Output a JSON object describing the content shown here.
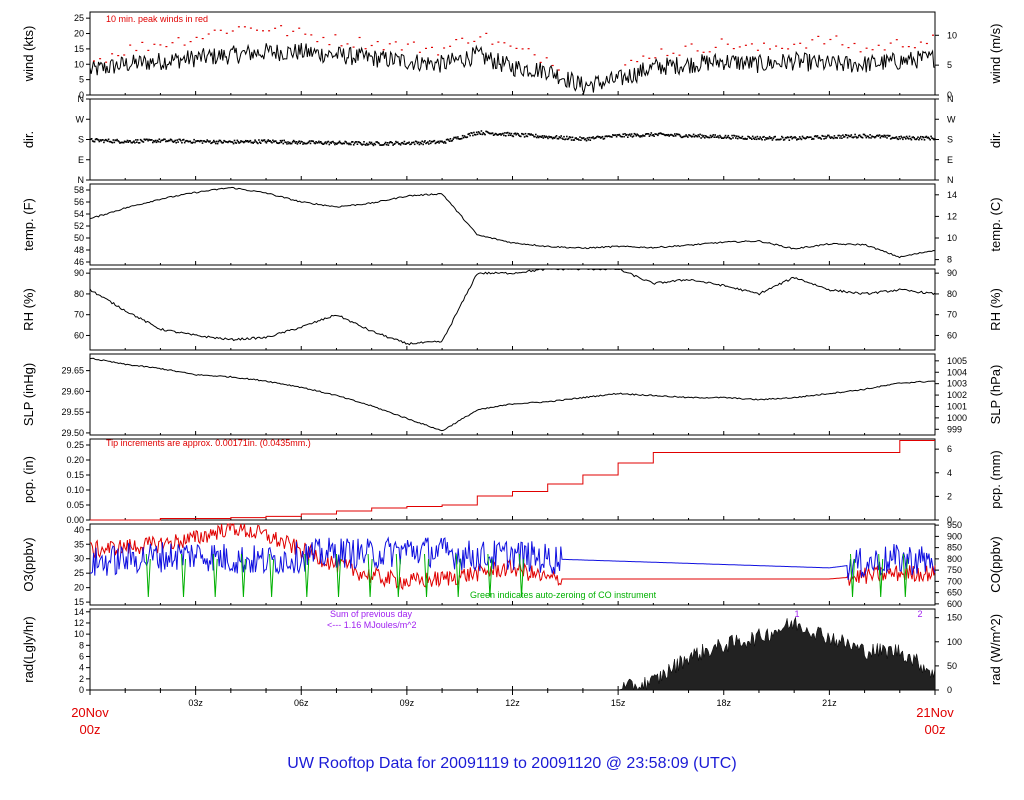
{
  "title": "UW Rooftop Data for 20091119  to  20091120 @ 23:58:09  (UTC)",
  "colors": {
    "red": "#e00000",
    "blue": "#1010e0",
    "green": "#00b000",
    "purple": "#a020f0",
    "black": "#000000"
  },
  "x_axis": {
    "ticks": [
      "03z",
      "06z",
      "09z",
      "12z",
      "15z",
      "18z",
      "21z"
    ],
    "start_label": "20Nov",
    "start_sub": "00z",
    "end_label": "21Nov",
    "end_sub": "00z"
  },
  "panels": [
    {
      "id": "wind",
      "ylabel_left": "wind (kts)",
      "ylabel_right": "wind (m/s)",
      "left_ticks": [
        "0",
        "5",
        "10",
        "15",
        "20",
        "25"
      ],
      "right_ticks": [
        "0",
        "5",
        "10"
      ],
      "note": "10 min. peak winds in red"
    },
    {
      "id": "dir",
      "ylabel_left": "dir.",
      "ylabel_right": "dir.",
      "left_ticks": [
        "N",
        "E",
        "S",
        "W",
        "N"
      ],
      "right_ticks": [
        "N",
        "E",
        "S",
        "W",
        "N"
      ]
    },
    {
      "id": "temp",
      "ylabel_left": "temp. (F)",
      "ylabel_right": "temp. (C)",
      "left_ticks": [
        "46",
        "48",
        "50",
        "52",
        "54",
        "56",
        "58"
      ],
      "right_ticks": [
        "8",
        "10",
        "12",
        "14"
      ]
    },
    {
      "id": "rh",
      "ylabel_left": "RH (%)",
      "ylabel_right": "RH (%)",
      "left_ticks": [
        "60",
        "70",
        "80",
        "90"
      ],
      "right_ticks": [
        "60",
        "70",
        "80",
        "90"
      ]
    },
    {
      "id": "slp",
      "ylabel_left": "SLP (inHg)",
      "ylabel_right": "SLP (hPa)",
      "left_ticks": [
        "29.50",
        "29.55",
        "29.60",
        "29.65"
      ],
      "right_ticks": [
        "999",
        "1000",
        "1001",
        "1002",
        "1003",
        "1004",
        "1005"
      ]
    },
    {
      "id": "pcp",
      "ylabel_left": "pcp. (in)",
      "ylabel_right": "pcp. (mm)",
      "left_ticks": [
        "0.00",
        "0.05",
        "0.10",
        "0.15",
        "0.20",
        "0.25"
      ],
      "right_ticks": [
        "0",
        "2",
        "4",
        "6"
      ],
      "note": "Tip increments are approx. 0.00171in. (0.0435mm.)"
    },
    {
      "id": "o3co",
      "ylabel_left": "O3(ppbv)",
      "ylabel_right": "CO(ppbv)",
      "left_ticks": [
        "15",
        "20",
        "25",
        "30",
        "35",
        "40"
      ],
      "right_ticks": [
        "600",
        "650",
        "700",
        "750",
        "800",
        "850",
        "900",
        "950"
      ],
      "note": "Green indicates auto-zeroing of CO instrument"
    },
    {
      "id": "rad",
      "ylabel_left": "rad(Lgly/hr)",
      "ylabel_right": "rad (W/m^2)",
      "left_ticks": [
        "0",
        "2",
        "4",
        "6",
        "8",
        "10",
        "12",
        "14"
      ],
      "right_ticks": [
        "0",
        "50",
        "100",
        "150"
      ],
      "note_line1": "Sum of previous day",
      "note_line2": "<--- 1.16 MJoules/m^2",
      "markers": [
        "1",
        "2"
      ]
    }
  ],
  "chart_data": [
    {
      "type": "line",
      "name": "wind",
      "ylabel": "wind (kts)",
      "ylim": [
        0,
        27
      ],
      "x": [
        0,
        1,
        2,
        3,
        4,
        5,
        6,
        7,
        8,
        9,
        10,
        11,
        12,
        13,
        14,
        15,
        16,
        17,
        18,
        19,
        20,
        21,
        22,
        23,
        24
      ],
      "series": [
        {
          "name": "wind",
          "values": [
            8,
            10,
            11,
            12,
            13,
            14,
            14,
            13,
            12,
            11,
            10,
            13,
            9,
            8,
            3,
            5,
            9,
            10,
            11,
            10,
            11,
            10,
            10,
            11,
            12
          ]
        },
        {
          "name": "10 min. peak winds",
          "values": [
            11,
            15,
            17,
            19,
            22,
            22,
            20,
            18,
            17,
            16,
            15,
            20,
            15,
            12,
            6,
            8,
            14,
            15,
            17,
            15,
            17,
            18,
            15,
            17,
            18
          ]
        }
      ]
    },
    {
      "type": "scatter",
      "name": "dir",
      "ylabel": "dir.",
      "x": [
        0,
        1,
        2,
        3,
        4,
        5,
        6,
        7,
        8,
        9,
        10,
        11,
        12,
        13,
        14,
        15,
        16,
        17,
        18,
        19,
        20,
        21,
        22,
        23,
        24
      ],
      "values": [
        180,
        175,
        178,
        175,
        172,
        175,
        170,
        168,
        165,
        168,
        172,
        215,
        205,
        195,
        185,
        200,
        205,
        200,
        195,
        190,
        188,
        195,
        200,
        190,
        190
      ]
    },
    {
      "type": "line",
      "name": "temp",
      "ylabel": "temp. (F)",
      "ylim": [
        45.5,
        59
      ],
      "x": [
        0,
        1,
        2,
        3,
        4,
        5,
        6,
        7,
        8,
        9,
        10,
        11,
        12,
        13,
        14,
        15,
        16,
        17,
        18,
        19,
        20,
        21,
        22,
        23,
        24
      ],
      "values": [
        53.2,
        55,
        56.5,
        57.6,
        58.4,
        57.5,
        56,
        55.2,
        55.8,
        57,
        57.4,
        50.5,
        49.2,
        48.6,
        48.3,
        48.6,
        48.4,
        48.8,
        49.3,
        49.5,
        48.2,
        49,
        48.9,
        46.8,
        48
      ]
    },
    {
      "type": "line",
      "name": "rh",
      "ylabel": "RH (%)",
      "ylim": [
        53,
        92
      ],
      "x": [
        0,
        1,
        2,
        3,
        4,
        5,
        6,
        7,
        8,
        9,
        10,
        11,
        12,
        13,
        14,
        15,
        16,
        17,
        18,
        19,
        20,
        21,
        22,
        23,
        24
      ],
      "values": [
        82,
        72,
        63,
        60,
        58,
        59,
        64,
        70,
        62,
        56,
        57,
        90,
        90,
        92,
        92,
        92,
        85,
        87,
        84,
        80,
        88,
        82,
        80,
        82,
        80
      ]
    },
    {
      "type": "line",
      "name": "slp",
      "ylabel": "SLP (inHg)",
      "ylim": [
        29.495,
        29.69
      ],
      "x": [
        0,
        1,
        2,
        3,
        4,
        5,
        6,
        7,
        8,
        9,
        10,
        11,
        12,
        13,
        14,
        15,
        16,
        17,
        18,
        19,
        20,
        21,
        22,
        23,
        24
      ],
      "values": [
        29.68,
        29.665,
        29.655,
        29.64,
        29.635,
        29.625,
        29.61,
        29.59,
        29.565,
        29.535,
        29.505,
        29.555,
        29.57,
        29.575,
        29.585,
        29.595,
        29.59,
        29.585,
        29.585,
        29.58,
        29.585,
        29.595,
        29.605,
        29.62,
        29.625
      ]
    },
    {
      "type": "line",
      "name": "pcp",
      "ylabel": "pcp. (in)",
      "ylim": [
        0,
        0.27
      ],
      "x": [
        0,
        1,
        2,
        3,
        4,
        5,
        6,
        7,
        8,
        9,
        10,
        11,
        12,
        13,
        14,
        15,
        16,
        17,
        18,
        19,
        20,
        21,
        22,
        23,
        24
      ],
      "values": [
        0,
        0,
        0.005,
        0.005,
        0.008,
        0.012,
        0.02,
        0.03,
        0.04,
        0.045,
        0.05,
        0.08,
        0.095,
        0.12,
        0.15,
        0.19,
        0.225,
        0.225,
        0.225,
        0.225,
        0.225,
        0.225,
        0.225,
        0.265,
        0.265
      ]
    },
    {
      "type": "line",
      "name": "o3co",
      "ylabel": "O3(ppbv)",
      "ylim": [
        14,
        42
      ],
      "x": [
        0,
        1,
        2,
        3,
        4,
        5,
        6,
        7,
        8,
        9,
        10,
        11,
        12,
        13,
        14,
        15,
        16,
        17,
        18,
        19,
        20,
        21,
        22,
        23,
        24
      ],
      "series": [
        {
          "name": "O3",
          "values": [
            33,
            34,
            35,
            37,
            41,
            38,
            33,
            28,
            24,
            22,
            23,
            25,
            27,
            23,
            23,
            23,
            23,
            23,
            23,
            23,
            23,
            23,
            24,
            25,
            25
          ]
        },
        {
          "name": "CO",
          "values": [
            780,
            800,
            810,
            820,
            800,
            790,
            810,
            830,
            820,
            840,
            830,
            810,
            820,
            800,
            795,
            790,
            785,
            780,
            775,
            770,
            765,
            760,
            780,
            800,
            790
          ]
        }
      ]
    },
    {
      "type": "area",
      "name": "rad",
      "ylabel": "rad(Lgly/hr)",
      "ylim": [
        0,
        14.5
      ],
      "x": [
        0,
        1,
        2,
        3,
        4,
        5,
        6,
        7,
        8,
        9,
        10,
        11,
        12,
        13,
        14,
        15,
        16,
        17,
        18,
        19,
        20,
        21,
        22,
        23,
        24
      ],
      "values": [
        0,
        0,
        0,
        0,
        0,
        0,
        0,
        0,
        0,
        0,
        0,
        0,
        0,
        0,
        0,
        0,
        1.5,
        6,
        8,
        9.5,
        12,
        9.5,
        7,
        7,
        3
      ]
    }
  ]
}
